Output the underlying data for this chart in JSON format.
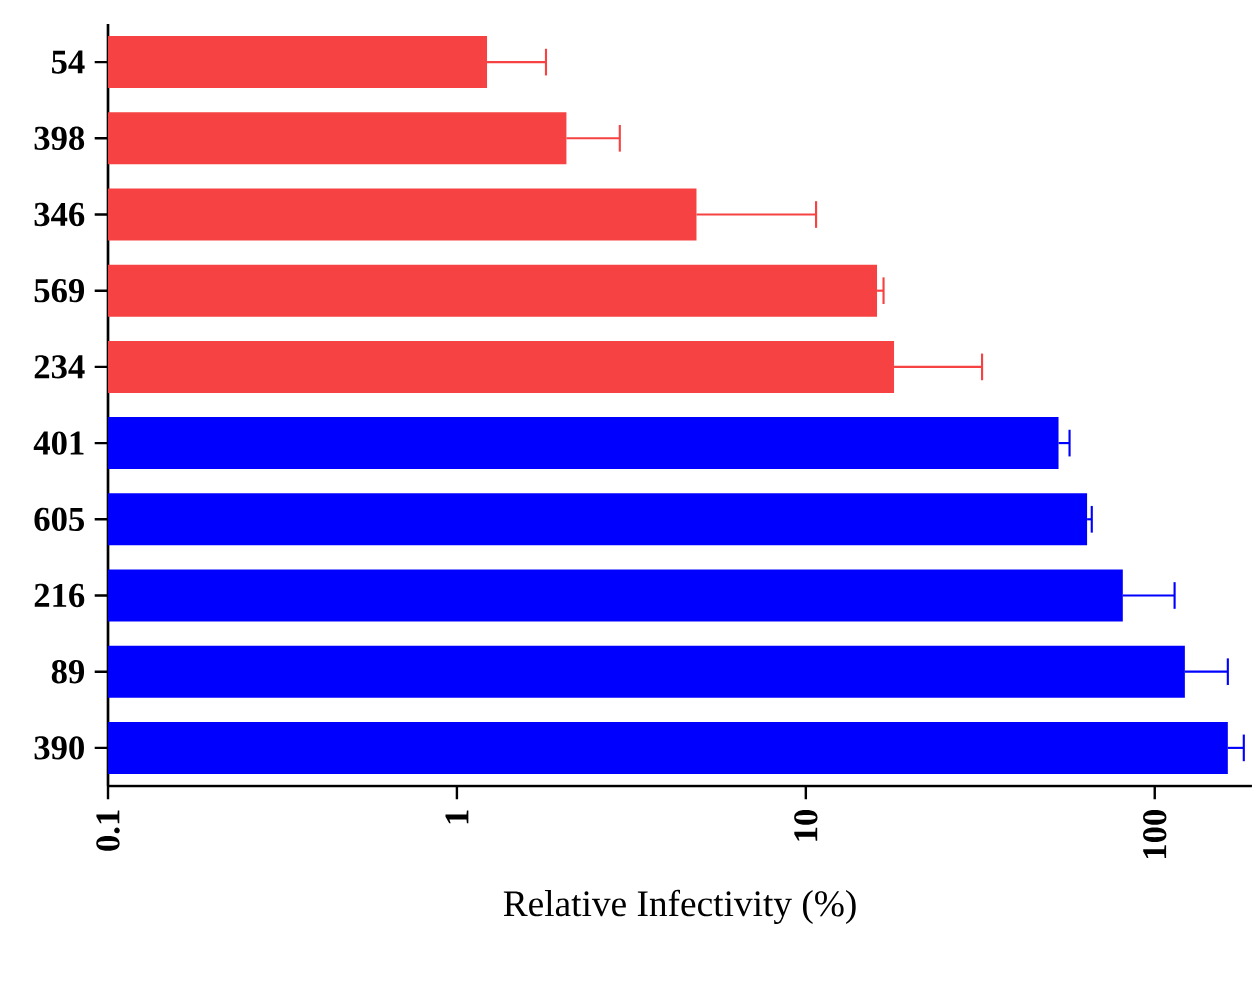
{
  "chart_data": {
    "type": "bar",
    "orientation": "horizontal",
    "xlabel": "Relative Infectivity (%)",
    "categories": [
      "54",
      "398",
      "346",
      "569",
      "234",
      "401",
      "605",
      "216",
      "89",
      "390"
    ],
    "values": [
      1.22,
      2.06,
      4.86,
      16.0,
      17.9,
      53,
      64,
      81,
      122,
      162
    ],
    "errors": [
      [
        1.22,
        1.8
      ],
      [
        2.06,
        2.93
      ],
      [
        4.86,
        10.7
      ],
      [
        16.0,
        16.7
      ],
      [
        17.9,
        32
      ],
      [
        53,
        57
      ],
      [
        64,
        66
      ],
      [
        81,
        114
      ],
      [
        122,
        162
      ],
      [
        162,
        180
      ]
    ],
    "colors": [
      "#f64242",
      "#f64242",
      "#f64242",
      "#f64242",
      "#f64242",
      "#0000ff",
      "#0000ff",
      "#0000ff",
      "#0000ff",
      "#0000ff"
    ],
    "log": "x",
    "xlim": [
      0.1,
      190
    ],
    "xticks": [
      0.1,
      1,
      10,
      100
    ],
    "grid": false
  }
}
